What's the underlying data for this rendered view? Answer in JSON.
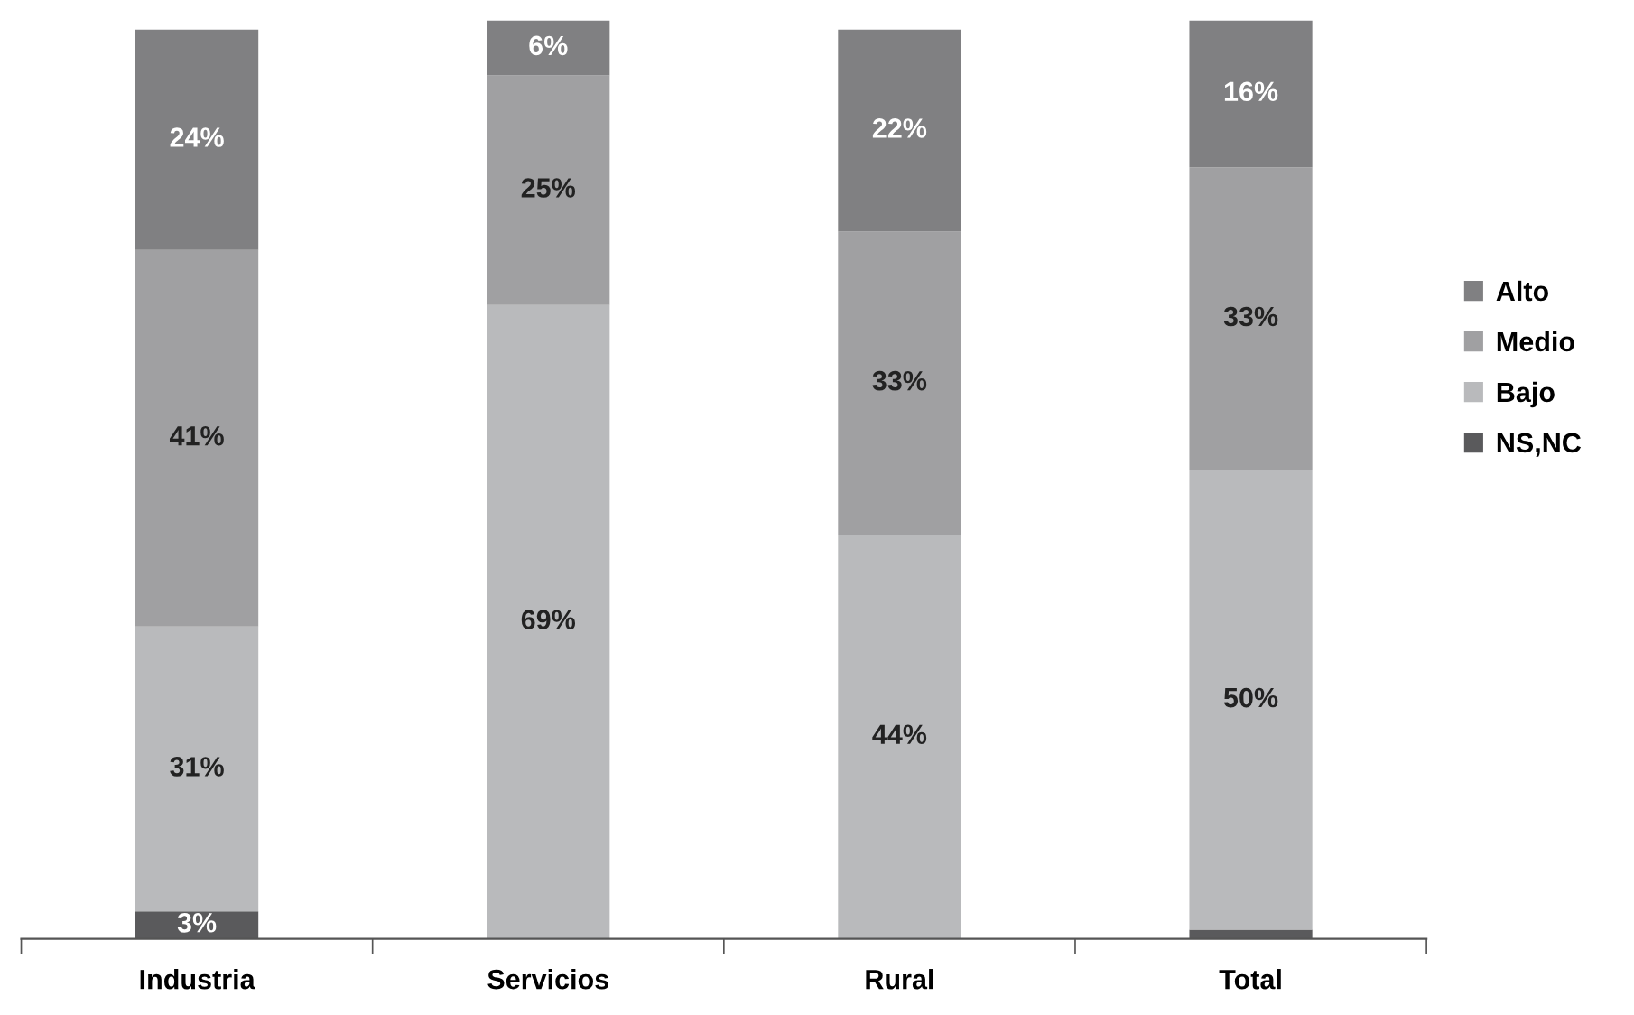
{
  "chart_data": {
    "type": "bar",
    "stacked": true,
    "categories": [
      "Industria",
      "Servicios",
      "Rural",
      "Total"
    ],
    "series": [
      {
        "name": "NS,NC",
        "color": "#5a5a5c",
        "values": [
          3,
          0,
          0,
          1
        ],
        "value_labels": [
          "3%",
          null,
          null,
          null
        ]
      },
      {
        "name": "Bajo",
        "color": "#b9babc",
        "values": [
          31,
          69,
          44,
          50
        ],
        "value_labels": [
          "31%",
          "69%",
          "44%",
          "50%"
        ]
      },
      {
        "name": "Medio",
        "color": "#a0a0a2",
        "values": [
          41,
          25,
          33,
          33
        ],
        "value_labels": [
          "41%",
          "25%",
          "33%",
          "33%"
        ]
      },
      {
        "name": "Alto",
        "color": "#808082",
        "values": [
          24,
          6,
          22,
          16
        ],
        "value_labels": [
          "24%",
          "6%",
          "22%",
          "16%"
        ]
      }
    ],
    "ylim": [
      0,
      100
    ],
    "tick_labels": "x",
    "grid": false,
    "legend": "right"
  }
}
